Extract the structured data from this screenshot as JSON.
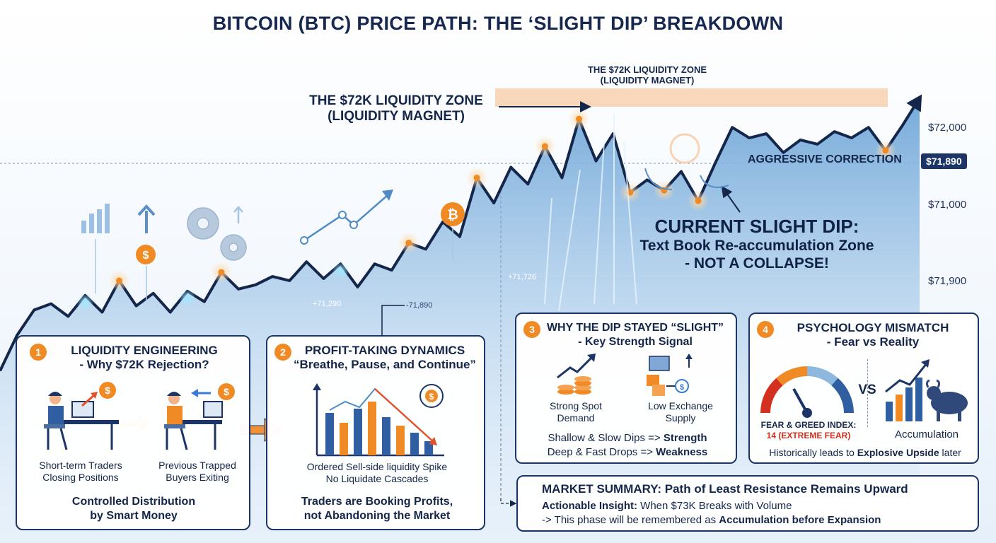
{
  "title": "BITCOIN (BTC) PRICE PATH: THE ‘SLIGHT DIP’ BREAKDOWN",
  "chart_data": {
    "type": "line",
    "series": [
      {
        "points": [
          [
            0,
            -7.7
          ],
          [
            1,
            -6.0
          ],
          [
            2,
            -4.8
          ],
          [
            3,
            -4.5
          ],
          [
            4,
            -5.1
          ],
          [
            5,
            -4.1
          ],
          [
            6,
            -4.9
          ],
          [
            7,
            -3.4
          ],
          [
            8,
            -4.6
          ],
          [
            9,
            -4.0
          ],
          [
            10,
            -4.9
          ],
          [
            11,
            -3.9
          ],
          [
            12,
            -4.4
          ],
          [
            13,
            -3.0
          ],
          [
            14,
            -3.8
          ],
          [
            15,
            -3.6
          ],
          [
            16,
            -3.2
          ],
          [
            17,
            -3.4
          ],
          [
            18,
            -2.5
          ],
          [
            19,
            -3.3
          ],
          [
            20,
            -2.6
          ],
          [
            21,
            -3.7
          ],
          [
            22,
            -2.6
          ],
          [
            23,
            -2.9
          ],
          [
            24,
            -1.6
          ],
          [
            25,
            -1.9
          ],
          [
            26,
            -0.6
          ],
          [
            27,
            -1.3
          ],
          [
            28,
            1.5
          ],
          [
            29,
            0.3
          ],
          [
            30,
            2.0
          ],
          [
            31,
            1.2
          ],
          [
            32,
            3.0
          ],
          [
            33,
            1.5
          ],
          [
            34,
            4.3
          ],
          [
            35,
            2.3
          ],
          [
            36,
            3.6
          ],
          [
            37,
            0.8
          ],
          [
            38,
            1.4
          ],
          [
            39,
            0.9
          ],
          [
            40,
            1.8
          ],
          [
            41,
            0.4
          ],
          [
            42,
            2.2
          ],
          [
            43,
            3.9
          ],
          [
            44,
            3.4
          ],
          [
            45,
            3.6
          ],
          [
            46,
            2.7
          ],
          [
            47,
            3.3
          ],
          [
            48,
            3.1
          ],
          [
            49,
            3.7
          ],
          [
            50,
            3.4
          ],
          [
            51,
            3.9
          ],
          [
            52,
            2.8
          ],
          [
            53,
            4.0
          ],
          [
            54,
            5.3
          ]
        ]
      }
    ],
    "y_axis_labels": [
      "$72,000",
      "$71,000",
      "$71,900"
    ],
    "price_tag": "$71,890",
    "annotations": {
      "zone_left": [
        "THE $72K LIQUIDITY ZONE",
        "(LIQUIDITY MAGNET)"
      ],
      "zone_top": [
        "THE $72K LIQUIDITY ZONE",
        "(LIQUIDITY MAGNET)"
      ],
      "correction": "AGGRESSIVE CORRECTION",
      "dip_title": "CURRENT SLIGHT DIP:",
      "dip_line2": "Text Book Re-accumulation Zone",
      "dip_line3": "- NOT A COLLAPSE!",
      "val_a": "+71,290",
      "val_b": "-71,890",
      "val_c": "+71,726"
    },
    "colors": {
      "line": "#14264a",
      "area": "#7fb0dd",
      "zone": "#f7c9a3",
      "accent": "#f08a24"
    }
  },
  "panels": {
    "p1": {
      "num": "1",
      "title1": "LIQUIDITY ENGINEERING",
      "title2": "- Why $72K Rejection?",
      "left_l1": "Short-term Traders",
      "left_l2": "Closing Positions",
      "right_l1": "Previous Trapped",
      "right_l2": "Buyers Exiting",
      "foot1": "Controlled Distribution",
      "foot2": "by Smart Money"
    },
    "p2": {
      "num": "2",
      "title1": "PROFIT-TAKING DYNAMICS",
      "title2": "“Breathe, Pause, and Continue”",
      "l1": "Ordered Sell-side liquidity Spike",
      "l2": "No Liquidate Cascades",
      "foot1": "Traders are Booking Profits,",
      "foot2": "not Abandoning the Market"
    },
    "p3": {
      "num": "3",
      "title1": "WHY THE DIP STAYED “SLIGHT”",
      "title2": "- Key Strength Signal",
      "left_l1": "Strong Spot",
      "left_l2": "Demand",
      "right_l1": "Low Exchange",
      "right_l2": "Supply",
      "line1_a": "Shallow & Slow Dips => ",
      "line1_b": "Strength",
      "line2_a": "Deep & Fast Drops => ",
      "line2_b": "Weakness"
    },
    "p4": {
      "num": "4",
      "title1": "PSYCHOLOGY MISMATCH",
      "title2": "- Fear vs Reality",
      "gauge_label": "FEAR & GREED INDEX:",
      "gauge_value": "14 (EXTREME FEAR)",
      "vs": "VS",
      "right_label": "Accumulation",
      "foot_a": "Historically leads to ",
      "foot_b": "Explosive Upside",
      "foot_c": " later"
    },
    "summary": {
      "title": "MARKET SUMMARY: Path of Least Resistance Remains Upward",
      "line1_a": "Actionable Insight:",
      "line1_b": " When $73K Breaks with Volume",
      "line2_a": "-> This phase will be remembered as ",
      "line2_b": "Accumulation before Expansion"
    }
  }
}
